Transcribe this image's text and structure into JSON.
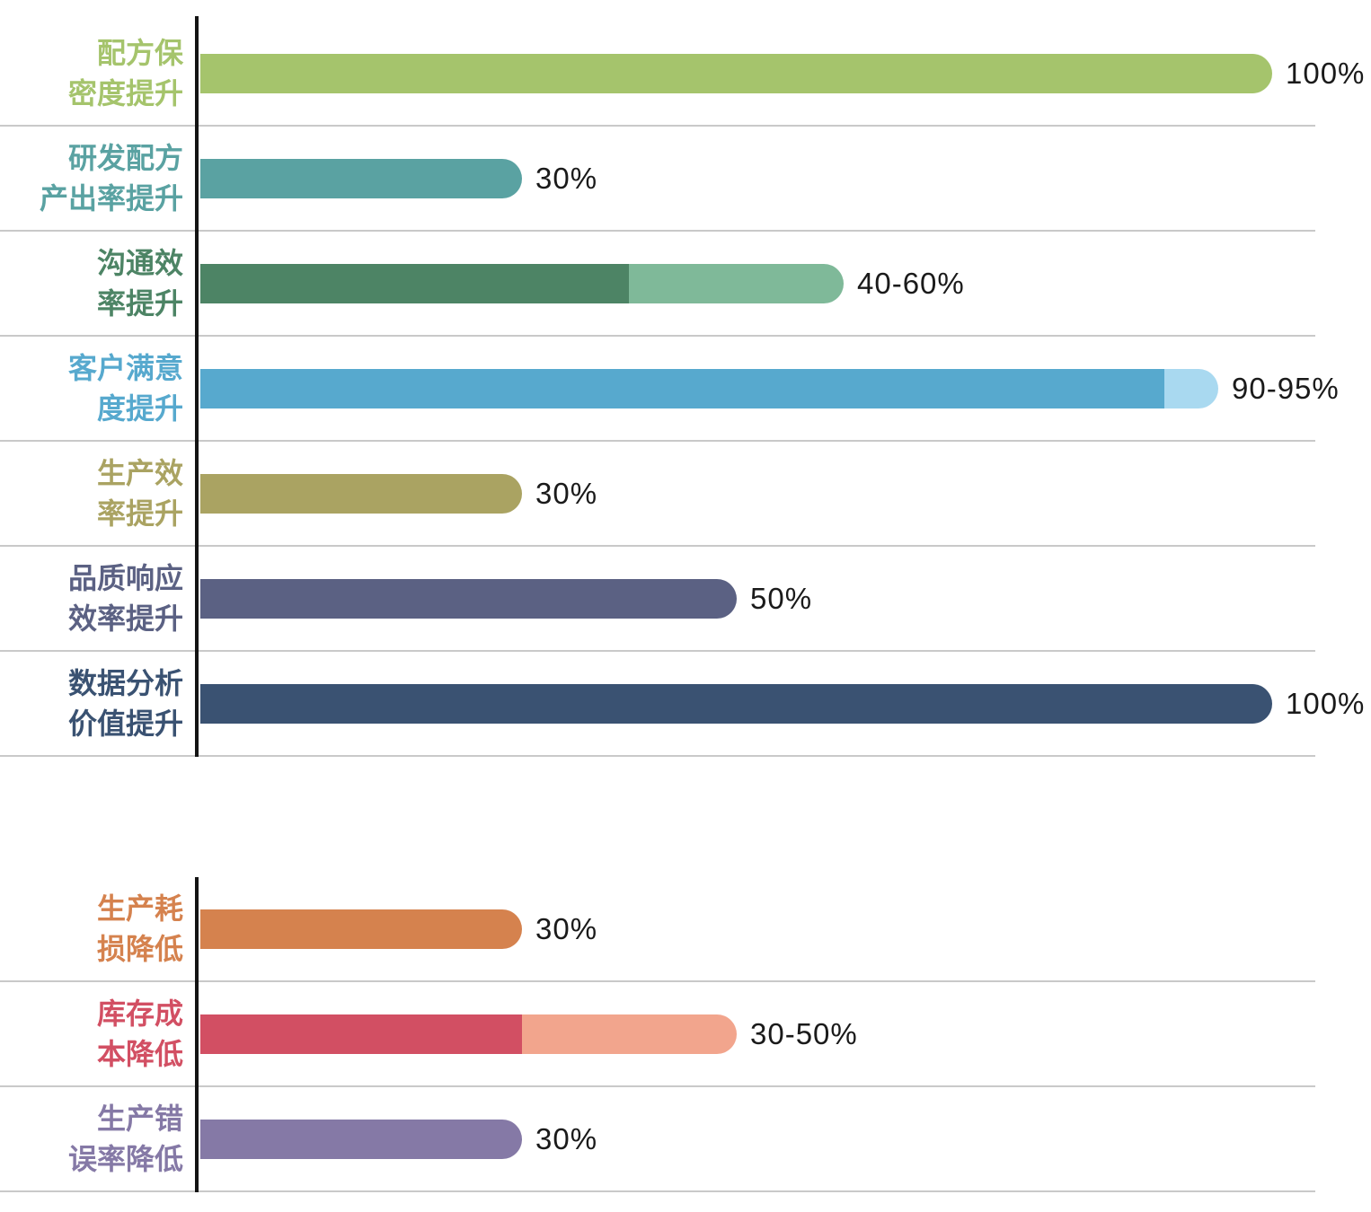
{
  "chart_data": {
    "type": "bar",
    "orientation": "horizontal",
    "title": "",
    "value_axis": {
      "min": 0,
      "max": 100,
      "unit": "%"
    },
    "axis_color": "#141414",
    "separator_color": "#c9c9c9",
    "value_label_color": "#1a1a1a",
    "legend": "none",
    "grid": "row-separators-only",
    "groups": [
      {
        "bars": [
          {
            "label": "配方保\n密度提升",
            "value_label": "100%",
            "low": 100,
            "high": 100,
            "color": "#a5c46c",
            "color_light": ""
          },
          {
            "label": "研发配方\n产出率提升",
            "value_label": "30%",
            "low": 30,
            "high": 30,
            "color": "#5aa2a2",
            "color_light": ""
          },
          {
            "label": "沟通效\n率提升",
            "value_label": "40-60%",
            "low": 40,
            "high": 60,
            "color": "#4d8465",
            "color_light": "#7fb999"
          },
          {
            "label": "客户满意\n度提升",
            "value_label": "90-95%",
            "low": 90,
            "high": 95,
            "color": "#57a9ce",
            "color_light": "#a9d9f0"
          },
          {
            "label": "生产效\n率提升",
            "value_label": "30%",
            "low": 30,
            "high": 30,
            "color": "#aaa362",
            "color_light": ""
          },
          {
            "label": "品质响应\n效率提升",
            "value_label": "50%",
            "low": 50,
            "high": 50,
            "color": "#5b6183",
            "color_light": ""
          },
          {
            "label": "数据分析\n价值提升",
            "value_label": "100%",
            "low": 100,
            "high": 100,
            "color": "#3a5272",
            "color_light": ""
          }
        ]
      },
      {
        "bars": [
          {
            "label": "生产耗\n损降低",
            "value_label": "30%",
            "low": 30,
            "high": 30,
            "color": "#d5824e",
            "color_light": ""
          },
          {
            "label": "库存成\n本降低",
            "value_label": "30-50%",
            "low": 30,
            "high": 50,
            "color": "#d24f63",
            "color_light": "#f2a58d"
          },
          {
            "label": "生产错\n误率降低",
            "value_label": "30%",
            "low": 30,
            "high": 30,
            "color": "#8579a6",
            "color_light": ""
          }
        ]
      }
    ]
  }
}
